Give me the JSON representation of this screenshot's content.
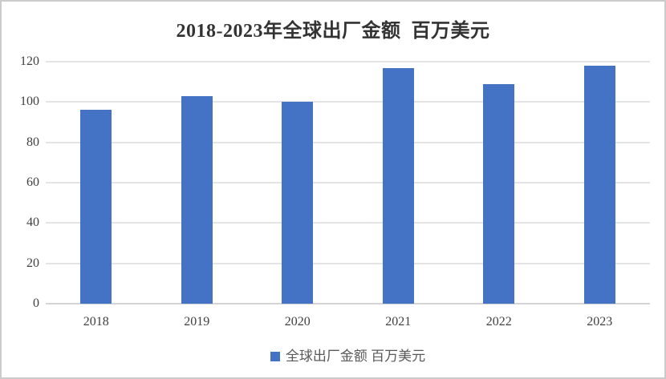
{
  "colors": {
    "bar": "#4472C4",
    "gridline": "#e4e4e4",
    "axis_line": "#d5d5d5",
    "title_text": "#333333",
    "tick_text": "#404040",
    "legend_text": "#595959",
    "frame_border": "#cbcbcb",
    "background": "#ffffff"
  },
  "legend": {
    "marker": "square-icon",
    "marker_color": "#4472C4"
  },
  "chart_data": {
    "type": "bar",
    "title": "2018-2023年全球出厂金额  百万美元",
    "categories": [
      "2018",
      "2019",
      "2020",
      "2021",
      "2022",
      "2023"
    ],
    "series": [
      {
        "name": "全球出厂金额 百万美元",
        "values": [
          96,
          103,
          100,
          117,
          109,
          118
        ]
      }
    ],
    "xlabel": "",
    "ylabel": "",
    "ylim": [
      0,
      120
    ],
    "yticks": [
      0,
      20,
      40,
      60,
      80,
      100,
      120
    ],
    "grid": "horizontal",
    "legend_position": "bottom-center",
    "bar_color": "#4472C4"
  }
}
